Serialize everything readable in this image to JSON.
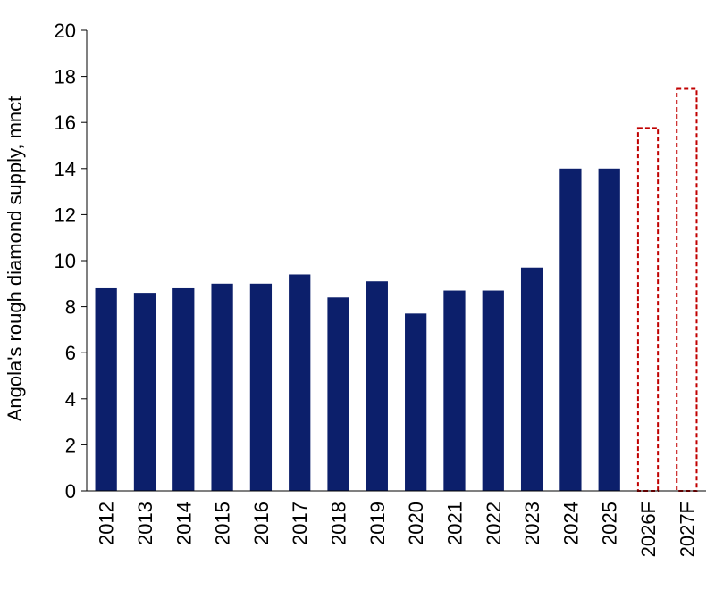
{
  "chart_data": {
    "type": "bar",
    "title": "",
    "xlabel": "",
    "ylabel": "Angola's rough diamond supply, mnct",
    "ylim": [
      0,
      20
    ],
    "yticks": [
      0,
      2,
      4,
      6,
      8,
      10,
      12,
      14,
      16,
      18,
      20
    ],
    "grid": false,
    "legend": "none",
    "categories": [
      "2012",
      "2013",
      "2014",
      "2015",
      "2016",
      "2017",
      "2018",
      "2019",
      "2020",
      "2021",
      "2022",
      "2023",
      "2024",
      "2025",
      "2026F",
      "2027F"
    ],
    "values": [
      8.8,
      8.6,
      8.8,
      9.0,
      9.0,
      9.4,
      8.4,
      9.1,
      7.7,
      8.7,
      8.7,
      9.7,
      14.0,
      14.0,
      15.8,
      17.5
    ],
    "forecast": [
      false,
      false,
      false,
      false,
      false,
      false,
      false,
      false,
      false,
      false,
      false,
      false,
      false,
      false,
      true,
      true
    ],
    "colors": {
      "actual": "#0c1f6b",
      "forecast_outline": "#c00000"
    }
  }
}
